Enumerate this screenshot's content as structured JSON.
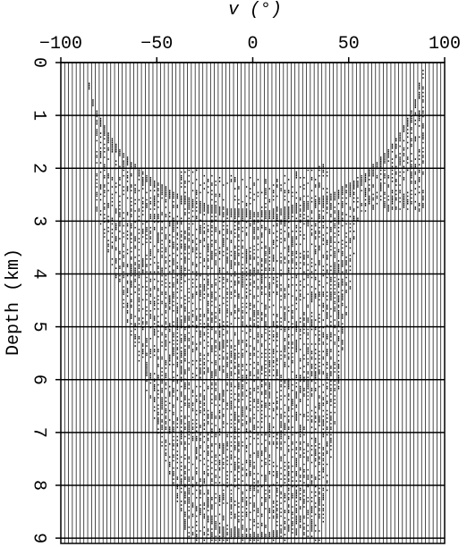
{
  "chart_data": {
    "type": "wiggle",
    "xlabel": "v (°)",
    "ylabel": "Depth (km)",
    "xlim": [
      -100,
      100
    ],
    "xticks": [
      {
        "value": -100,
        "label": "−100"
      },
      {
        "value": -50,
        "label": "−50"
      },
      0,
      50,
      100
    ],
    "ylim": [
      0,
      9.1
    ],
    "yticks": [
      0,
      1,
      2,
      3,
      4,
      5,
      6,
      7,
      8,
      9
    ],
    "grid": true
  }
}
